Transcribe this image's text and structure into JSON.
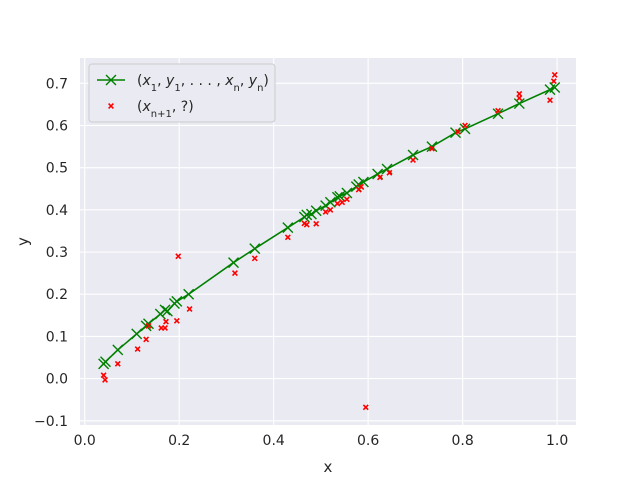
{
  "chart_data": {
    "type": "scatter",
    "title": "",
    "xlabel": "x",
    "ylabel": "y",
    "xlim": [
      -0.01,
      1.04
    ],
    "ylim": [
      -0.11,
      0.76
    ],
    "xticks": [
      0.0,
      0.2,
      0.4,
      0.6,
      0.8,
      1.0
    ],
    "xtick_labels": [
      "0.0",
      "0.2",
      "0.4",
      "0.6",
      "0.8",
      "1.0"
    ],
    "yticks": [
      -0.1,
      0.0,
      0.1,
      0.2,
      0.3,
      0.4,
      0.5,
      0.6,
      0.7
    ],
    "ytick_labels": [
      "−0.1",
      "0.0",
      "0.1",
      "0.2",
      "0.3",
      "0.4",
      "0.5",
      "0.6",
      "0.7"
    ],
    "grid": true,
    "background": "#eaeaf2",
    "legend_position": "top-left",
    "series": [
      {
        "name": "(x1, y1, ..., xn, yn)",
        "legend_parts": [
          "(",
          "x",
          "1",
          ", ",
          "y",
          "1",
          ", . . . , ",
          "x",
          "n",
          ", ",
          "y",
          "n",
          ")"
        ],
        "kind": "line-with-x-markers",
        "color": "#008000",
        "points": [
          [
            0.04,
            0.035
          ],
          [
            0.044,
            0.04
          ],
          [
            0.07,
            0.068
          ],
          [
            0.11,
            0.106
          ],
          [
            0.13,
            0.125
          ],
          [
            0.135,
            0.13
          ],
          [
            0.16,
            0.153
          ],
          [
            0.17,
            0.163
          ],
          [
            0.175,
            0.16
          ],
          [
            0.19,
            0.178
          ],
          [
            0.195,
            0.183
          ],
          [
            0.22,
            0.2
          ],
          [
            0.315,
            0.275
          ],
          [
            0.36,
            0.308
          ],
          [
            0.43,
            0.358
          ],
          [
            0.465,
            0.383
          ],
          [
            0.47,
            0.388
          ],
          [
            0.48,
            0.39
          ],
          [
            0.49,
            0.398
          ],
          [
            0.51,
            0.41
          ],
          [
            0.52,
            0.418
          ],
          [
            0.535,
            0.43
          ],
          [
            0.54,
            0.432
          ],
          [
            0.555,
            0.44
          ],
          [
            0.575,
            0.455
          ],
          [
            0.58,
            0.46
          ],
          [
            0.59,
            0.466
          ],
          [
            0.62,
            0.485
          ],
          [
            0.64,
            0.497
          ],
          [
            0.695,
            0.53
          ],
          [
            0.735,
            0.55
          ],
          [
            0.785,
            0.583
          ],
          [
            0.805,
            0.592
          ],
          [
            0.875,
            0.628
          ],
          [
            0.92,
            0.652
          ],
          [
            0.985,
            0.685
          ],
          [
            0.995,
            0.69
          ]
        ]
      },
      {
        "name": "(x_{n+1}, ?)",
        "legend_parts": [
          "(",
          "x",
          "n+1",
          ", ?)"
        ],
        "kind": "small-x-markers",
        "color": "#ff0000",
        "points": [
          [
            0.04,
            0.008
          ],
          [
            0.043,
            -0.003
          ],
          [
            0.07,
            0.035
          ],
          [
            0.112,
            0.07
          ],
          [
            0.13,
            0.093
          ],
          [
            0.135,
            0.125
          ],
          [
            0.162,
            0.12
          ],
          [
            0.17,
            0.12
          ],
          [
            0.172,
            0.135
          ],
          [
            0.195,
            0.137
          ],
          [
            0.198,
            0.29
          ],
          [
            0.222,
            0.165
          ],
          [
            0.318,
            0.25
          ],
          [
            0.36,
            0.285
          ],
          [
            0.43,
            0.335
          ],
          [
            0.465,
            0.368
          ],
          [
            0.47,
            0.365
          ],
          [
            0.49,
            0.367
          ],
          [
            0.51,
            0.395
          ],
          [
            0.52,
            0.4
          ],
          [
            0.535,
            0.415
          ],
          [
            0.545,
            0.418
          ],
          [
            0.555,
            0.425
          ],
          [
            0.58,
            0.448
          ],
          [
            0.585,
            0.455
          ],
          [
            0.595,
            -0.068
          ],
          [
            0.625,
            0.477
          ],
          [
            0.645,
            0.488
          ],
          [
            0.695,
            0.518
          ],
          [
            0.735,
            0.545
          ],
          [
            0.79,
            0.585
          ],
          [
            0.805,
            0.6
          ],
          [
            0.875,
            0.635
          ],
          [
            0.92,
            0.675
          ],
          [
            0.92,
            0.665
          ],
          [
            0.985,
            0.66
          ],
          [
            0.993,
            0.705
          ],
          [
            0.995,
            0.72
          ]
        ]
      }
    ]
  }
}
